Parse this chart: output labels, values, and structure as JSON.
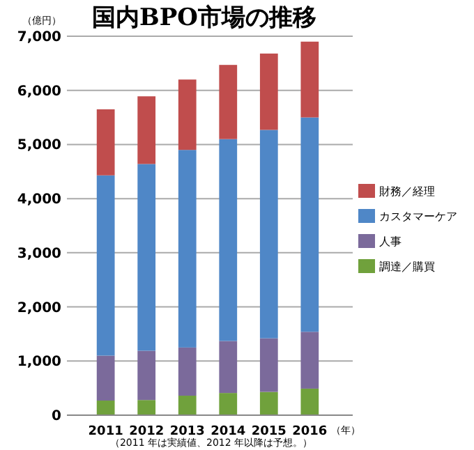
{
  "chart_data": {
    "type": "bar",
    "title": "国内BPO市場の推移",
    "ylabel": "（億円）",
    "xlabel": "（年）",
    "categories": [
      "2011",
      "2012",
      "2013",
      "2014",
      "2015",
      "2016"
    ],
    "stacked": true,
    "series": [
      {
        "name": "調達／購買",
        "color": "#70a13c",
        "values": [
          270,
          280,
          360,
          410,
          430,
          490
        ]
      },
      {
        "name": "人事",
        "color": "#7b6a9b",
        "values": [
          830,
          910,
          890,
          960,
          990,
          1050
        ]
      },
      {
        "name": "カスタマーケア",
        "color": "#4f87c7",
        "values": [
          3330,
          3450,
          3650,
          3730,
          3850,
          3960
        ]
      },
      {
        "name": "財務／経理",
        "color": "#c04d4d",
        "values": [
          1220,
          1250,
          1300,
          1370,
          1410,
          1400
        ]
      }
    ],
    "ylim": [
      0,
      7000
    ],
    "yticks": [
      {
        "value": 0,
        "label": "0"
      },
      {
        "value": 1000,
        "label": "1,000"
      },
      {
        "value": 2000,
        "label": "2,000"
      },
      {
        "value": 3000,
        "label": "3,000"
      },
      {
        "value": 4000,
        "label": "4,000"
      },
      {
        "value": 5000,
        "label": "5,000"
      },
      {
        "value": 6000,
        "label": "6,000"
      },
      {
        "value": 7000,
        "label": "7,000"
      }
    ],
    "grid": "y",
    "legend": "right",
    "annotations": [
      "（2011 年は実績値、2012 年以降は予想。）"
    ]
  }
}
